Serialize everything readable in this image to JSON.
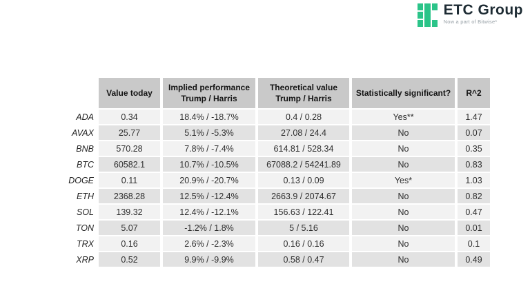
{
  "logo": {
    "name": "ETC Group",
    "tagline": "Now a part of Bitwise*",
    "brand_green": "#2BC489",
    "text_color": "#1D2B33"
  },
  "table": {
    "headers": {
      "asset": "",
      "value_today": "Value today",
      "implied": "Implied performance\nTrump / Harris",
      "theoretical": "Theoretical value\nTrump / Harris",
      "significant": "Statistically significant?",
      "r2": "R^2"
    },
    "colors": {
      "header_bg": "#C9C9C9",
      "row_odd_bg": "#F2F2F2",
      "row_even_bg": "#E2E2E2"
    },
    "rows": [
      {
        "asset": "ADA",
        "value_today": "0.34",
        "implied": "18.4% / -18.7%",
        "theoretical": "0.4 / 0.28",
        "significant": "Yes**",
        "r2": "1.47"
      },
      {
        "asset": "AVAX",
        "value_today": "25.77",
        "implied": "5.1% / -5.3%",
        "theoretical": "27.08 / 24.4",
        "significant": "No",
        "r2": "0.07"
      },
      {
        "asset": "BNB",
        "value_today": "570.28",
        "implied": "7.8% / -7.4%",
        "theoretical": "614.81 / 528.34",
        "significant": "No",
        "r2": "0.35"
      },
      {
        "asset": "BTC",
        "value_today": "60582.1",
        "implied": "10.7% / -10.5%",
        "theoretical": "67088.2 / 54241.89",
        "significant": "No",
        "r2": "0.83"
      },
      {
        "asset": "DOGE",
        "value_today": "0.11",
        "implied": "20.9% / -20.7%",
        "theoretical": "0.13 / 0.09",
        "significant": "Yes*",
        "r2": "1.03"
      },
      {
        "asset": "ETH",
        "value_today": "2368.28",
        "implied": "12.5% / -12.4%",
        "theoretical": "2663.9 / 2074.67",
        "significant": "No",
        "r2": "0.82"
      },
      {
        "asset": "SOL",
        "value_today": "139.32",
        "implied": "12.4% / -12.1%",
        "theoretical": "156.63 / 122.41",
        "significant": "No",
        "r2": "0.47"
      },
      {
        "asset": "TON",
        "value_today": "5.07",
        "implied": "-1.2% / 1.8%",
        "theoretical": "5 / 5.16",
        "significant": "No",
        "r2": "0.01"
      },
      {
        "asset": "TRX",
        "value_today": "0.16",
        "implied": "2.6% / -2.3%",
        "theoretical": "0.16 / 0.16",
        "significant": "No",
        "r2": "0.1"
      },
      {
        "asset": "XRP",
        "value_today": "0.52",
        "implied": "9.9% / -9.9%",
        "theoretical": "0.58 / 0.47",
        "significant": "No",
        "r2": "0.49"
      }
    ]
  }
}
